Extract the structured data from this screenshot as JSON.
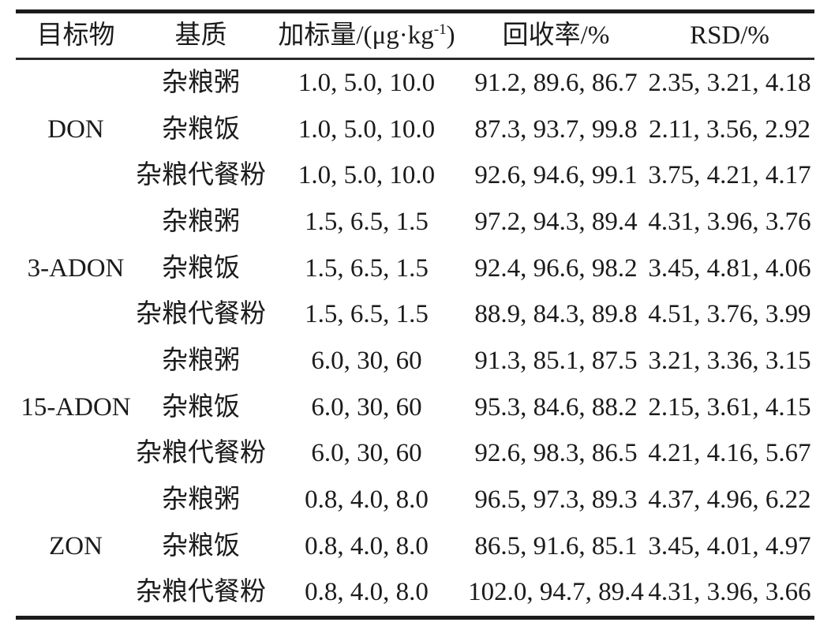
{
  "table": {
    "header": {
      "target": "目标物",
      "matrix": "基质",
      "spike_prefix": "加标量/(μg·kg",
      "spike_sup": "-1",
      "spike_suffix": ")",
      "recovery": "回收率/%",
      "rsd": "RSD/%"
    },
    "groups": [
      {
        "target": "DON",
        "rows": [
          {
            "matrix": "杂粮粥",
            "spike": "1.0, 5.0, 10.0",
            "recovery": "91.2, 89.6, 86.7",
            "rsd": "2.35, 3.21, 4.18"
          },
          {
            "matrix": "杂粮饭",
            "spike": "1.0, 5.0, 10.0",
            "recovery": "87.3, 93.7, 99.8",
            "rsd": "2.11, 3.56, 2.92"
          },
          {
            "matrix": "杂粮代餐粉",
            "spike": "1.0, 5.0, 10.0",
            "recovery": "92.6, 94.6, 99.1",
            "rsd": "3.75, 4.21, 4.17"
          }
        ]
      },
      {
        "target": "3-ADON",
        "rows": [
          {
            "matrix": "杂粮粥",
            "spike": "1.5, 6.5, 1.5",
            "recovery": "97.2, 94.3, 89.4",
            "rsd": "4.31, 3.96, 3.76"
          },
          {
            "matrix": "杂粮饭",
            "spike": "1.5, 6.5, 1.5",
            "recovery": "92.4, 96.6, 98.2",
            "rsd": "3.45, 4.81, 4.06"
          },
          {
            "matrix": "杂粮代餐粉",
            "spike": "1.5, 6.5, 1.5",
            "recovery": "88.9, 84.3, 89.8",
            "rsd": "4.51, 3.76, 3.99"
          }
        ]
      },
      {
        "target": "15-ADON",
        "rows": [
          {
            "matrix": "杂粮粥",
            "spike": "6.0, 30, 60",
            "recovery": "91.3, 85.1, 87.5",
            "rsd": "3.21, 3.36, 3.15"
          },
          {
            "matrix": "杂粮饭",
            "spike": "6.0, 30, 60",
            "recovery": "95.3, 84.6, 88.2",
            "rsd": "2.15, 3.61, 4.15"
          },
          {
            "matrix": "杂粮代餐粉",
            "spike": "6.0, 30, 60",
            "recovery": "92.6, 98.3, 86.5",
            "rsd": "4.21, 4.16, 5.67"
          }
        ]
      },
      {
        "target": "ZON",
        "rows": [
          {
            "matrix": "杂粮粥",
            "spike": "0.8, 4.0, 8.0",
            "recovery": "96.5, 97.3, 89.3",
            "rsd": "4.37, 4.96, 6.22"
          },
          {
            "matrix": "杂粮饭",
            "spike": "0.8, 4.0, 8.0",
            "recovery": "86.5, 91.6, 85.1",
            "rsd": "3.45, 4.01, 4.97"
          },
          {
            "matrix": "杂粮代餐粉",
            "spike": "0.8, 4.0, 8.0",
            "recovery": "102.0, 94.7, 89.4",
            "rsd": "4.31, 3.96, 3.66"
          }
        ]
      }
    ]
  }
}
